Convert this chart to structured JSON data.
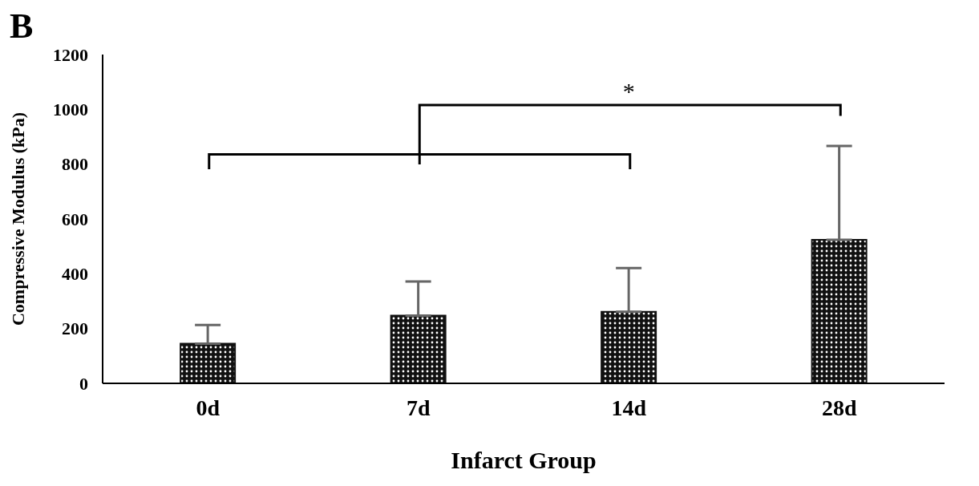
{
  "chart_data": {
    "type": "bar",
    "title": "B",
    "xlabel": "Infarct Group",
    "ylabel": "Compressive Modulus (kPa)",
    "categories": [
      "0d",
      "7d",
      "14d",
      "28d"
    ],
    "values": [
      145,
      247,
      261,
      524
    ],
    "errors": [
      [
        145,
        213
      ],
      [
        247,
        372
      ],
      [
        261,
        421
      ],
      [
        524,
        866
      ]
    ],
    "color": "#111111",
    "ylim": [
      0,
      1200
    ],
    "yticks": [
      0,
      200,
      400,
      600,
      800,
      1000,
      1200
    ],
    "grid": false,
    "legend": false,
    "annotations": [
      "*"
    ]
  }
}
